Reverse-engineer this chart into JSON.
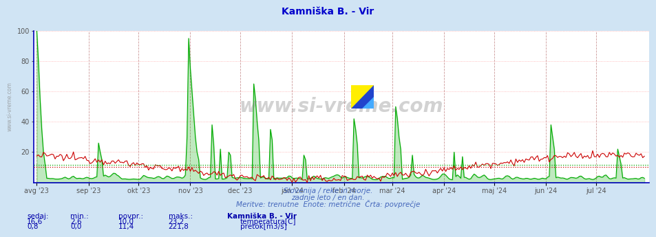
{
  "title": "Kamniška B. - Vir",
  "title_color": "#0000cc",
  "bg_color": "#d0e4f4",
  "plot_bg_color": "#ffffff",
  "grid_color_h": "#ffaaaa",
  "grid_color_v": "#ddbbbb",
  "grid_color_v2": "#bbbbdd",
  "ylim": [
    0,
    100
  ],
  "yticks": [
    0,
    20,
    40,
    60,
    80,
    100
  ],
  "x_labels": [
    "avg '23",
    "sep '23",
    "okt '23",
    "nov '23",
    "dec '23",
    "jan '24",
    "feb '24",
    "mar '24",
    "apr '24",
    "maj '24",
    "jun '24",
    "jul '24"
  ],
  "temp_color": "#cc0000",
  "flow_color": "#00aa00",
  "avg_temp": 10.0,
  "avg_flow": 11.4,
  "watermark_text": "www.si-vreme.com",
  "subtitle1": "Slovenija / reke in morje.",
  "subtitle2": "zadnje leto / en dan.",
  "subtitle3": "Meritve: trenutne  Enote: metrične  Črta: povprečje",
  "subtitle_color": "#4466bb",
  "table_header": [
    "sedaj:",
    "min.:",
    "povpr.:",
    "maks.:",
    "Kamniška B. - Vir"
  ],
  "table_temp": [
    "16,6",
    "2,6",
    "10,0",
    "23,2",
    "temperatura[C]"
  ],
  "table_flow": [
    "0,8",
    "0,0",
    "11,4",
    "221,8",
    "pretok[m3/s]"
  ],
  "table_color": "#0000aa",
  "n_points": 365,
  "left_label": "www.si-vreme.com",
  "month_starts": [
    0,
    31,
    61,
    92,
    122,
    153,
    184,
    213,
    244,
    274,
    305,
    335
  ]
}
